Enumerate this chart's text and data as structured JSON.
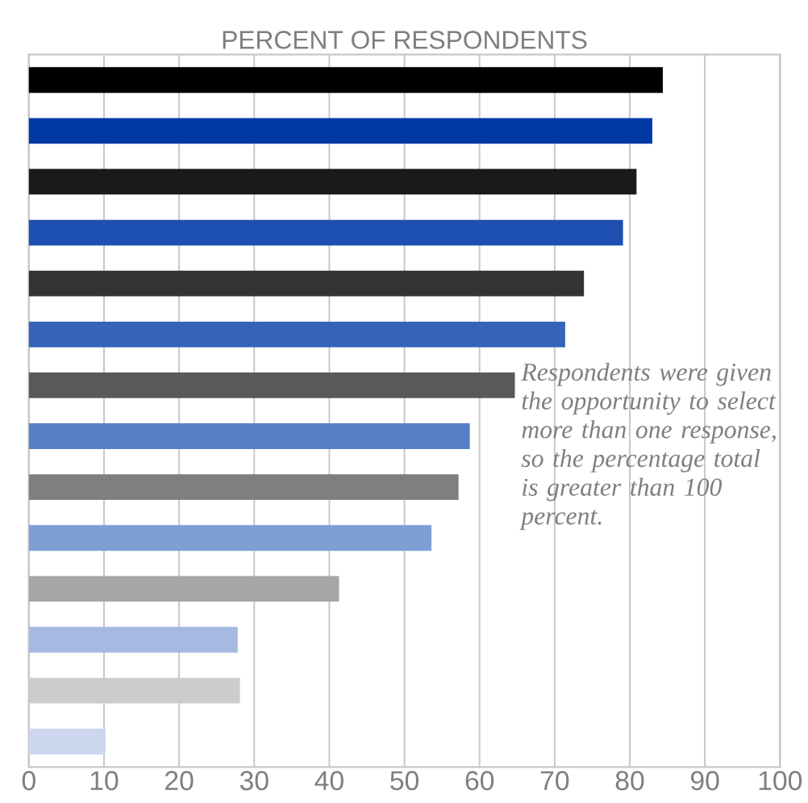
{
  "chart_data": {
    "type": "bar",
    "orientation": "horizontal",
    "title": "PERCENT OF RESPONDENTS",
    "categories": [
      null,
      null,
      null,
      null,
      null,
      null,
      null,
      null,
      null,
      null,
      null,
      null,
      null,
      null
    ],
    "values": [
      84.4,
      83.0,
      80.9,
      79.1,
      73.9,
      71.4,
      64.7,
      58.7,
      57.2,
      53.6,
      41.3,
      27.8,
      28.1,
      10.2
    ],
    "colors": [
      "#000000",
      "#0039a6",
      "#1a1a1a",
      "#1c4fb0",
      "#333333",
      "#3563b9",
      "#595959",
      "#5580c8",
      "#7f7f7f",
      "#7f9fd4",
      "#a6a6a6",
      "#a6b9e0",
      "#cccccc",
      "#ccd6ee"
    ],
    "xlim": [
      0,
      100
    ],
    "xticks": [
      0,
      10,
      20,
      30,
      40,
      50,
      60,
      70,
      80,
      90,
      100
    ],
    "grid": "x",
    "annotations": [
      "Respondents were given the opportunity to select more than one response, so the percentage total is greater than 100 percent."
    ]
  }
}
